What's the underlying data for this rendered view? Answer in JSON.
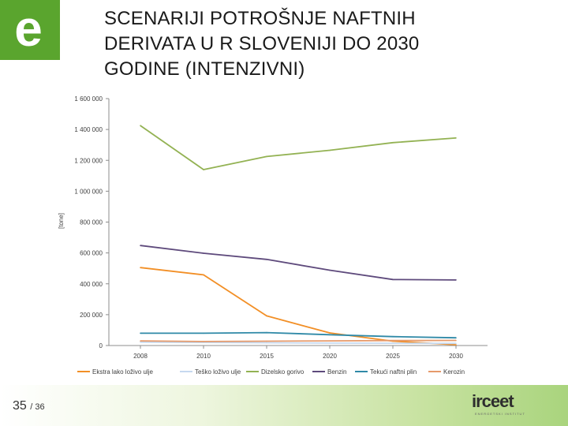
{
  "header": {
    "logo_glyph": "e",
    "title_lines": [
      "SCENARIJI POTROŠNJE NAFTNIH",
      "DERIVATA U R SLOVENIJI DO 2030",
      "GODINE (INTENZIVNI)"
    ]
  },
  "footer": {
    "page_current": "35",
    "page_total": "/ 36",
    "brand_name": "irceet",
    "brand_tagline": "ENERGETSKI INSTITUT"
  },
  "colors": {
    "brand_green": "#5aa52e",
    "footer_green": "#a9d47d"
  },
  "chart_data": {
    "type": "line",
    "title": "",
    "xlabel": "",
    "ylabel": "[tone]",
    "x": [
      "2008",
      "2010",
      "2015",
      "2020",
      "2025",
      "2030"
    ],
    "ylim": [
      0,
      1600000
    ],
    "yticks": [
      "0",
      "200 000",
      "400 000",
      "600 000",
      "800 000",
      "1 000 000",
      "1 200 000",
      "1 400 000",
      "1 600 000"
    ],
    "grid": false,
    "legend_position": "bottom",
    "series": [
      {
        "name": "Ekstra lako loživo ulje",
        "color": "#f28f26",
        "values": [
          505000,
          458000,
          192000,
          82000,
          28000,
          5000
        ]
      },
      {
        "name": "Teško loživo ulje",
        "color": "#c6d9ef",
        "values": [
          22000,
          20000,
          18000,
          16000,
          15000,
          14000
        ]
      },
      {
        "name": "Dizelsko gorivo",
        "color": "#93b253",
        "values": [
          1425000,
          1140000,
          1225000,
          1265000,
          1315000,
          1345000
        ]
      },
      {
        "name": "Benzin",
        "color": "#5e4a7c",
        "values": [
          648000,
          598000,
          558000,
          488000,
          428000,
          425000
        ]
      },
      {
        "name": "Tekući naftni plin",
        "color": "#2f89a7",
        "values": [
          80000,
          80000,
          84000,
          70000,
          58000,
          50000
        ]
      },
      {
        "name": "Kerozin",
        "color": "#e69a6b",
        "values": [
          30000,
          26000,
          28000,
          30000,
          32000,
          33000
        ]
      }
    ]
  }
}
